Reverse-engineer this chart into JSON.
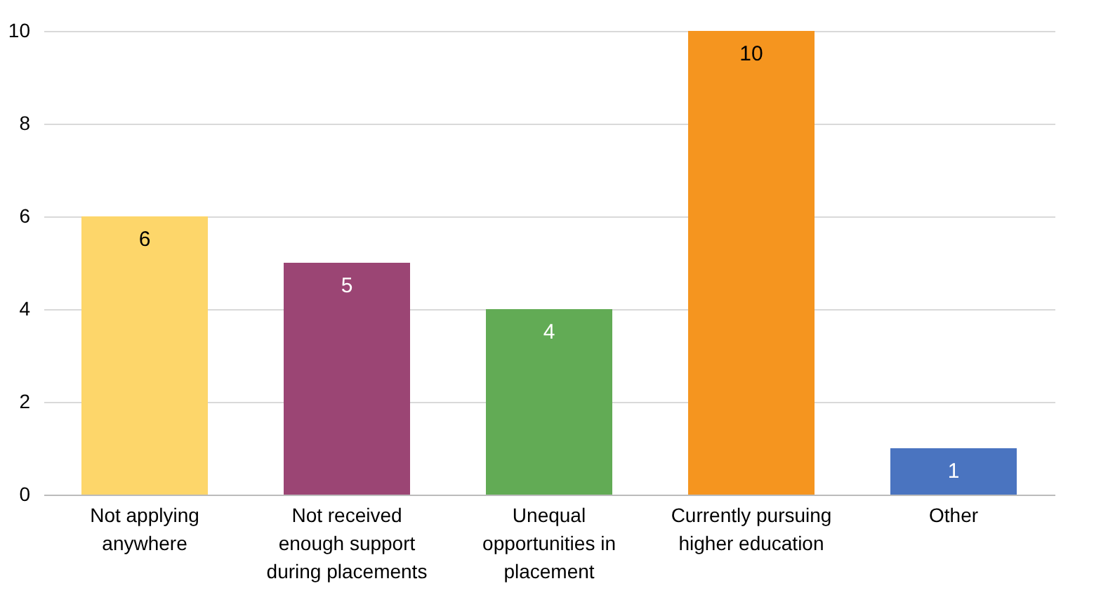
{
  "chart_data": {
    "type": "bar",
    "categories": [
      "Not applying anywhere",
      "Not received enough support during placements",
      "Unequal opportunities in placement",
      "Currently pursuing higher education",
      "Other"
    ],
    "values": [
      6,
      5,
      4,
      10,
      1
    ],
    "colors": [
      "#fdd66a",
      "#9b4574",
      "#62ab55",
      "#f5951f",
      "#4a74c0"
    ],
    "ylim": [
      0,
      10
    ],
    "yticks": [
      0,
      2,
      4,
      6,
      8,
      10
    ],
    "grid": "y",
    "data_labels": true
  }
}
